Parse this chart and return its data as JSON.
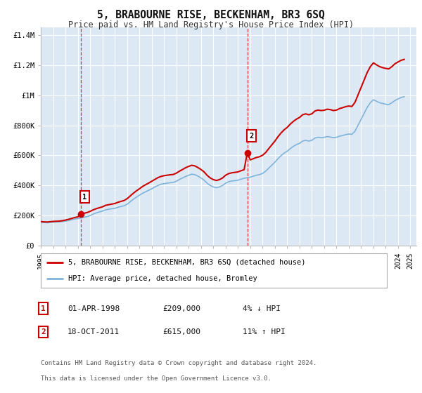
{
  "title": "5, BRABOURNE RISE, BECKENHAM, BR3 6SQ",
  "subtitle": "Price paid vs. HM Land Registry's House Price Index (HPI)",
  "background_color": "#ffffff",
  "plot_bg_color": "#dce9f5",
  "grid_color": "#ffffff",
  "xlim": [
    1995.0,
    2025.5
  ],
  "ylim": [
    0,
    1450000
  ],
  "yticks": [
    0,
    200000,
    400000,
    600000,
    800000,
    1000000,
    1200000,
    1400000
  ],
  "ytick_labels": [
    "£0",
    "£200K",
    "£400K",
    "£600K",
    "£800K",
    "£1M",
    "£1.2M",
    "£1.4M"
  ],
  "xtick_years": [
    1995,
    1996,
    1997,
    1998,
    1999,
    2000,
    2001,
    2002,
    2003,
    2004,
    2005,
    2006,
    2007,
    2008,
    2009,
    2010,
    2011,
    2012,
    2013,
    2014,
    2015,
    2016,
    2017,
    2018,
    2019,
    2020,
    2021,
    2022,
    2023,
    2024,
    2025
  ],
  "sale1_x": 1998.25,
  "sale1_y": 209000,
  "sale1_label": "1",
  "sale2_x": 2011.8,
  "sale2_y": 615000,
  "sale2_label": "2",
  "vline1_x": 1998.25,
  "vline2_x": 2011.8,
  "red_line_color": "#cc0000",
  "blue_line_color": "#7fb3d9",
  "sale_marker_color": "#cc0000",
  "legend_label_red": "5, BRABOURNE RISE, BECKENHAM, BR3 6SQ (detached house)",
  "legend_label_blue": "HPI: Average price, detached house, Bromley",
  "annotation1_label": "01-APR-1998",
  "annotation1_price": "£209,000",
  "annotation1_hpi": "4% ↓ HPI",
  "annotation2_label": "18-OCT-2011",
  "annotation2_price": "£615,000",
  "annotation2_hpi": "11% ↑ HPI",
  "footnote1": "Contains HM Land Registry data © Crown copyright and database right 2024.",
  "footnote2": "This data is licensed under the Open Government Licence v3.0.",
  "hpi_data_years": [
    1995.0,
    1995.25,
    1995.5,
    1995.75,
    1996.0,
    1996.25,
    1996.5,
    1996.75,
    1997.0,
    1997.25,
    1997.5,
    1997.75,
    1998.0,
    1998.25,
    1998.5,
    1998.75,
    1999.0,
    1999.25,
    1999.5,
    1999.75,
    2000.0,
    2000.25,
    2000.5,
    2000.75,
    2001.0,
    2001.25,
    2001.5,
    2001.75,
    2002.0,
    2002.25,
    2002.5,
    2002.75,
    2003.0,
    2003.25,
    2003.5,
    2003.75,
    2004.0,
    2004.25,
    2004.5,
    2004.75,
    2005.0,
    2005.25,
    2005.5,
    2005.75,
    2006.0,
    2006.25,
    2006.5,
    2006.75,
    2007.0,
    2007.25,
    2007.5,
    2007.75,
    2008.0,
    2008.25,
    2008.5,
    2008.75,
    2009.0,
    2009.25,
    2009.5,
    2009.75,
    2010.0,
    2010.25,
    2010.5,
    2010.75,
    2011.0,
    2011.25,
    2011.5,
    2011.75,
    2012.0,
    2012.25,
    2012.5,
    2012.75,
    2013.0,
    2013.25,
    2013.5,
    2013.75,
    2014.0,
    2014.25,
    2014.5,
    2014.75,
    2015.0,
    2015.25,
    2015.5,
    2015.75,
    2016.0,
    2016.25,
    2016.5,
    2016.75,
    2017.0,
    2017.25,
    2017.5,
    2017.75,
    2018.0,
    2018.25,
    2018.5,
    2018.75,
    2019.0,
    2019.25,
    2019.5,
    2019.75,
    2020.0,
    2020.25,
    2020.5,
    2020.75,
    2021.0,
    2021.25,
    2021.5,
    2021.75,
    2022.0,
    2022.25,
    2022.5,
    2022.75,
    2023.0,
    2023.25,
    2023.5,
    2023.75,
    2024.0,
    2024.25,
    2024.5
  ],
  "hpi_data_values": [
    155000,
    153000,
    152000,
    154000,
    156000,
    157000,
    158000,
    160000,
    163000,
    167000,
    172000,
    177000,
    180000,
    183000,
    188000,
    193000,
    200000,
    210000,
    218000,
    224000,
    230000,
    238000,
    242000,
    245000,
    248000,
    255000,
    260000,
    265000,
    275000,
    292000,
    308000,
    322000,
    335000,
    348000,
    358000,
    368000,
    378000,
    390000,
    400000,
    408000,
    412000,
    415000,
    418000,
    420000,
    428000,
    440000,
    450000,
    460000,
    468000,
    475000,
    472000,
    462000,
    450000,
    435000,
    415000,
    400000,
    390000,
    385000,
    390000,
    400000,
    415000,
    425000,
    430000,
    432000,
    435000,
    442000,
    448000,
    452000,
    455000,
    462000,
    468000,
    472000,
    480000,
    495000,
    515000,
    535000,
    555000,
    578000,
    598000,
    615000,
    628000,
    645000,
    660000,
    672000,
    680000,
    695000,
    700000,
    695000,
    700000,
    715000,
    720000,
    718000,
    720000,
    725000,
    722000,
    718000,
    720000,
    728000,
    732000,
    738000,
    742000,
    740000,
    760000,
    800000,
    840000,
    880000,
    920000,
    950000,
    970000,
    960000,
    950000,
    945000,
    940000,
    938000,
    950000,
    965000,
    975000,
    985000,
    990000
  ],
  "prop_data_years": [
    1995.0,
    1995.25,
    1995.5,
    1995.75,
    1996.0,
    1996.25,
    1996.5,
    1996.75,
    1997.0,
    1997.25,
    1997.5,
    1997.75,
    1998.0,
    1998.25,
    1998.5,
    1998.75,
    1999.0,
    1999.25,
    1999.5,
    1999.75,
    2000.0,
    2000.25,
    2000.5,
    2000.75,
    2001.0,
    2001.25,
    2001.5,
    2001.75,
    2002.0,
    2002.25,
    2002.5,
    2002.75,
    2003.0,
    2003.25,
    2003.5,
    2003.75,
    2004.0,
    2004.25,
    2004.5,
    2004.75,
    2005.0,
    2005.25,
    2005.5,
    2005.75,
    2006.0,
    2006.25,
    2006.5,
    2006.75,
    2007.0,
    2007.25,
    2007.5,
    2007.75,
    2008.0,
    2008.25,
    2008.5,
    2008.75,
    2009.0,
    2009.25,
    2009.5,
    2009.75,
    2010.0,
    2010.25,
    2010.5,
    2010.75,
    2011.0,
    2011.25,
    2011.5,
    2011.75,
    2012.0,
    2012.25,
    2012.5,
    2012.75,
    2013.0,
    2013.25,
    2013.5,
    2013.75,
    2014.0,
    2014.25,
    2014.5,
    2014.75,
    2015.0,
    2015.25,
    2015.5,
    2015.75,
    2016.0,
    2016.25,
    2016.5,
    2016.75,
    2017.0,
    2017.25,
    2017.5,
    2017.75,
    2018.0,
    2018.25,
    2018.5,
    2018.75,
    2019.0,
    2019.25,
    2019.5,
    2019.75,
    2020.0,
    2020.25,
    2020.5,
    2020.75,
    2021.0,
    2021.25,
    2021.5,
    2021.75,
    2022.0,
    2022.25,
    2022.5,
    2022.75,
    2023.0,
    2023.25,
    2023.5,
    2023.75,
    2024.0,
    2024.25,
    2024.5
  ],
  "prop_data_values": [
    160000,
    158000,
    157000,
    159000,
    161000,
    162000,
    163000,
    166000,
    170000,
    175000,
    181000,
    187000,
    191000,
    209000,
    215000,
    220000,
    228000,
    238000,
    246000,
    252000,
    258000,
    268000,
    272000,
    276000,
    280000,
    288000,
    294000,
    300000,
    312000,
    330000,
    348000,
    364000,
    378000,
    393000,
    405000,
    416000,
    428000,
    440000,
    452000,
    460000,
    465000,
    468000,
    471000,
    473000,
    482000,
    495000,
    506000,
    518000,
    527000,
    534000,
    530000,
    519000,
    506000,
    490000,
    467000,
    450000,
    439000,
    433000,
    439000,
    450000,
    468000,
    479000,
    484000,
    487000,
    490000,
    498000,
    505000,
    615000,
    570000,
    578000,
    586000,
    591000,
    601000,
    619000,
    645000,
    670000,
    695000,
    724000,
    749000,
    770000,
    786000,
    808000,
    826000,
    841000,
    852000,
    870000,
    876000,
    870000,
    876000,
    895000,
    901000,
    898000,
    900000,
    907000,
    904000,
    898000,
    901000,
    911000,
    917000,
    924000,
    928000,
    925000,
    952000,
    1002000,
    1052000,
    1102000,
    1152000,
    1190000,
    1215000,
    1202000,
    1190000,
    1183000,
    1178000,
    1175000,
    1190000,
    1209000,
    1221000,
    1232000,
    1238000
  ]
}
